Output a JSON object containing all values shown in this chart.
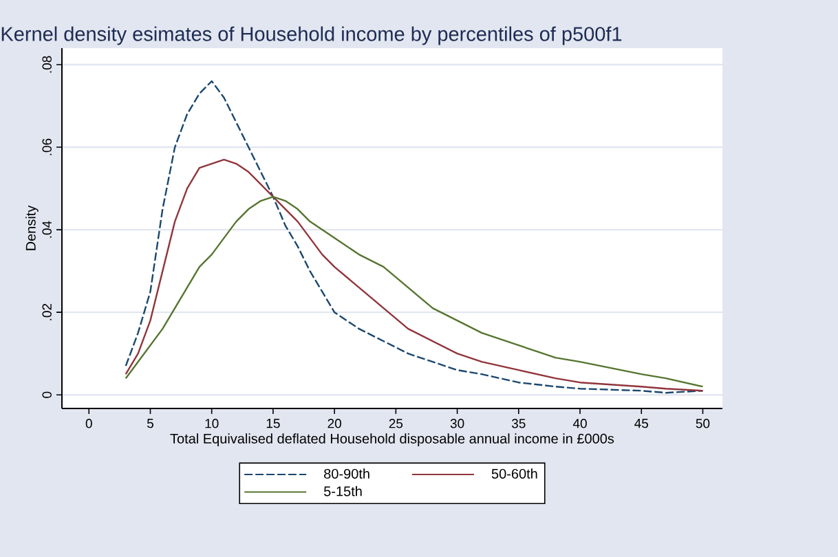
{
  "chart_data": {
    "type": "line",
    "title": "Kernel density esimates of Household income by percentiles of p500f1",
    "xlabel": "Total Equivalised deflated Household disposable annual income in £000s",
    "ylabel": "Density",
    "xlim": [
      -2.2,
      51.6
    ],
    "ylim": [
      -0.0033,
      0.084
    ],
    "xticks": [
      0,
      5,
      10,
      15,
      20,
      25,
      30,
      35,
      40,
      45,
      50
    ],
    "yticks": [
      0,
      {
        "value": 0.02,
        "label": ".02"
      },
      {
        "value": 0.04,
        "label": ".04"
      },
      {
        "value": 0.06,
        "label": ".06"
      },
      {
        "value": 0.08,
        "label": ".08"
      }
    ],
    "grid": "y",
    "legend": "bottom",
    "x": [
      3,
      4,
      5,
      6,
      7,
      8,
      9,
      10,
      11,
      12,
      13,
      14,
      15,
      16,
      17,
      18,
      19,
      20,
      22,
      24,
      26,
      28,
      30,
      32,
      35,
      38,
      40,
      45,
      47,
      50
    ],
    "series": [
      {
        "name": "80-90th",
        "color": "#1a476f",
        "line_style": "dashed",
        "values": [
          0.007,
          0.015,
          0.025,
          0.045,
          0.06,
          0.068,
          0.073,
          0.076,
          0.072,
          0.066,
          0.06,
          0.054,
          0.048,
          0.041,
          0.036,
          0.03,
          0.025,
          0.02,
          0.016,
          0.013,
          0.01,
          0.008,
          0.006,
          0.005,
          0.003,
          0.002,
          0.0015,
          0.001,
          0.0005,
          0.001
        ]
      },
      {
        "name": "50-60th",
        "color": "#90353b",
        "line_style": "solid",
        "values": [
          0.005,
          0.01,
          0.018,
          0.03,
          0.042,
          0.05,
          0.055,
          0.056,
          0.057,
          0.056,
          0.054,
          0.051,
          0.048,
          0.045,
          0.042,
          0.038,
          0.034,
          0.031,
          0.026,
          0.021,
          0.016,
          0.013,
          0.01,
          0.008,
          0.006,
          0.004,
          0.003,
          0.002,
          0.0015,
          0.001
        ]
      },
      {
        "name": "5-15th",
        "color": "#55752f",
        "line_style": "solid",
        "values": [
          0.004,
          0.008,
          0.012,
          0.016,
          0.021,
          0.026,
          0.031,
          0.034,
          0.038,
          0.042,
          0.045,
          0.047,
          0.048,
          0.047,
          0.045,
          0.042,
          0.04,
          0.038,
          0.034,
          0.031,
          0.026,
          0.021,
          0.018,
          0.015,
          0.012,
          0.009,
          0.008,
          0.005,
          0.004,
          0.002
        ]
      }
    ]
  }
}
